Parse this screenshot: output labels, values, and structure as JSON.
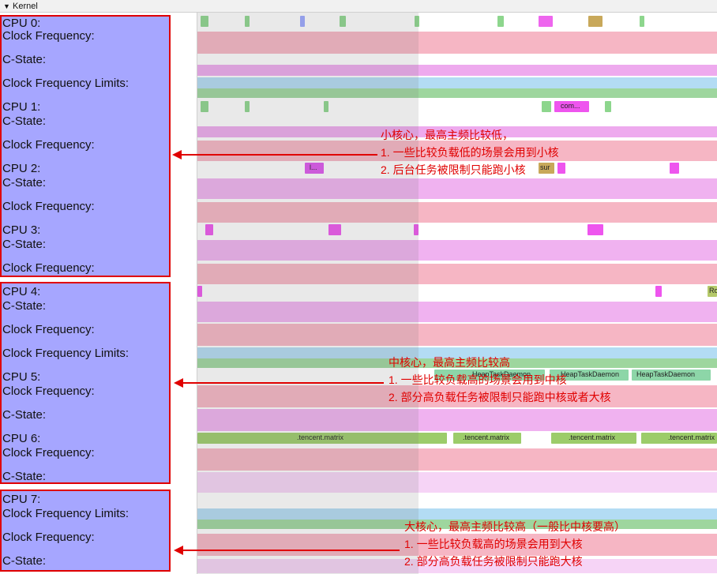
{
  "header": {
    "collapse_icon": "triangle-down-icon",
    "title": "Kernel"
  },
  "groups": [
    {
      "name": "little-cores",
      "labels": [
        "CPU 0:",
        "Clock Frequency:",
        "C-State:",
        "Clock Frequency Limits:",
        "CPU 1:",
        "C-State:",
        "Clock Frequency:",
        "CPU 2:",
        "C-State:",
        "Clock Frequency:",
        "CPU 3:",
        "C-State:",
        "Clock Frequency:"
      ]
    },
    {
      "name": "middle-cores",
      "labels": [
        "CPU 4:",
        "C-State:",
        "Clock Frequency:",
        "Clock Frequency Limits:",
        "CPU 5:",
        "Clock Frequency:",
        "C-State:",
        "CPU 6:",
        "Clock Frequency:",
        "C-State:"
      ]
    },
    {
      "name": "big-cores",
      "labels": [
        "CPU 7:",
        "Clock Frequency Limits:",
        "Clock Frequency:",
        "C-State:"
      ]
    }
  ],
  "slice_labels": {
    "com": "com...",
    "l": "l...",
    "sur": "sur",
    "ro": "Ro",
    "heap1": "HeapTaskDaemon",
    "heap2": "HeapTaskDaemon",
    "heap3": "HeapTaskDaemon",
    "matrix1": ".tencent.matrix",
    "matrix2": ".tencent.matrix",
    "matrix3": ".tencent.matrix",
    "matrix4": ".tencent.matrix"
  },
  "annotations": [
    {
      "lines": [
        "小核心，最高主频比较低，",
        "1. 一些比较负载低的场景会用到小核",
        "2. 后台任务被限制只能跑小核"
      ]
    },
    {
      "lines": [
        "中核心，最高主频比较高",
        "1. 一些比较负载高的场景会用到中核",
        "2. 部分高负载任务被限制只能跑中核或者大核"
      ]
    },
    {
      "lines": [
        "大核心，最高主频比较高（一般比中核要高）",
        "1. 一些比较负载高的场景会用到大核",
        "2. 部分高负载任务被限制只能跑大核"
      ]
    }
  ],
  "colors": {
    "highlight_border": "#e00000",
    "group_fill": "#a6a6ff",
    "annotation_text": "#e00000"
  }
}
